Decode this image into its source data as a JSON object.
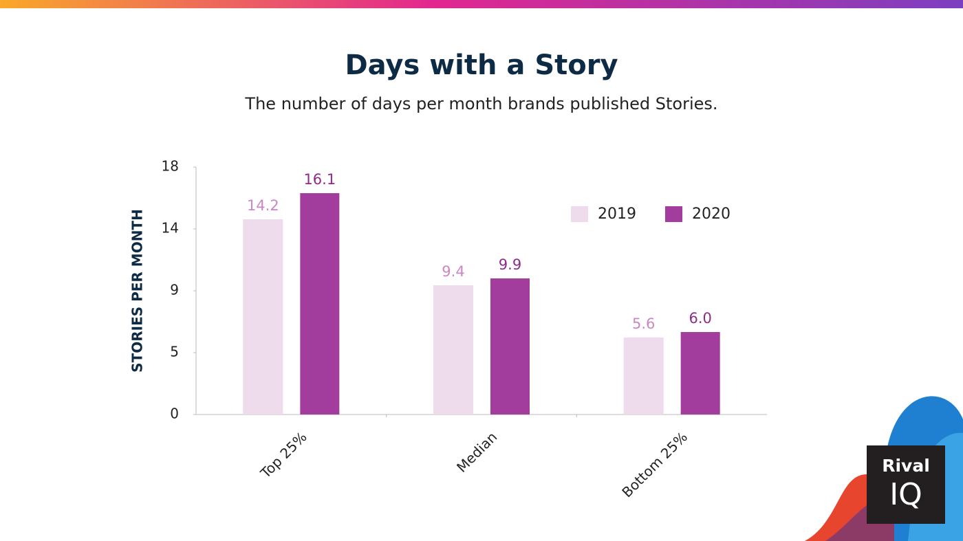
{
  "chart_data": {
    "type": "bar",
    "title": "Days with a Story",
    "subtitle": "The number of days per month brands published Stories.",
    "y_label": "STORIES PER MONTH",
    "categories": [
      "Top 25%",
      "Median",
      "Bottom 25%"
    ],
    "series": [
      {
        "name": "2019",
        "color": "#eedbec",
        "label_color": "#c987c4",
        "values": [
          14.2,
          9.4,
          5.6
        ],
        "value_labels": [
          "14.2",
          "9.4",
          "5.6"
        ]
      },
      {
        "name": "2020",
        "color": "#a23d9d",
        "label_color": "#8e2b89",
        "values": [
          16.1,
          9.9,
          6
        ],
        "value_labels": [
          "16.1",
          "9.9",
          "6.0"
        ]
      }
    ],
    "ylim": [
      0,
      18
    ],
    "yticks": [
      0,
      {
        "value": 4.5,
        "label": "5"
      },
      9,
      {
        "value": 13.5,
        "label": "14"
      },
      18
    ],
    "legend": "top-right"
  },
  "logo": {
    "line1": "Rival",
    "line2": "IQ"
  }
}
